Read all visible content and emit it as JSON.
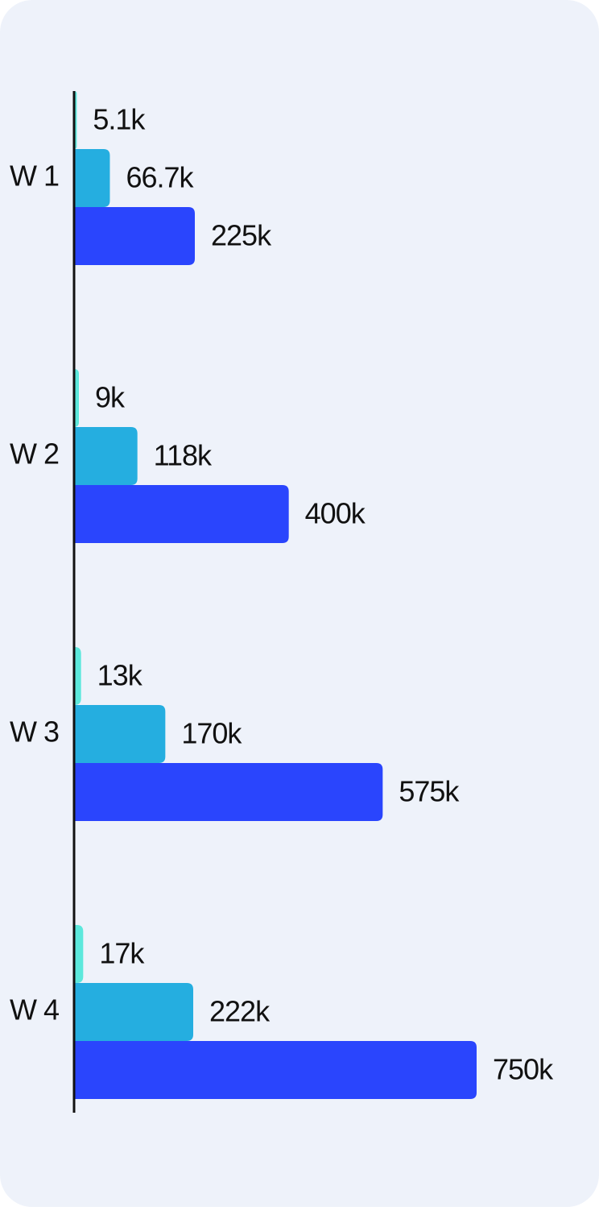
{
  "chart_data": {
    "type": "bar",
    "orientation": "horizontal",
    "categories": [
      "W 1",
      "W 2",
      "W 3",
      "W 4"
    ],
    "series": [
      {
        "color": "#5ce8dc",
        "values": [
          5100,
          9000,
          13000,
          17000
        ],
        "value_labels": [
          "5.1k",
          "9k",
          "13k",
          "17k"
        ]
      },
      {
        "color": "#25aee0",
        "values": [
          66700,
          118000,
          170000,
          222000
        ],
        "value_labels": [
          "66.7k",
          "118k",
          "170k",
          "222k"
        ]
      },
      {
        "color": "#2a45fd",
        "values": [
          225000,
          400000,
          575000,
          750000
        ],
        "value_labels": [
          "225k",
          "400k",
          "575k",
          "750k"
        ]
      }
    ]
  }
}
